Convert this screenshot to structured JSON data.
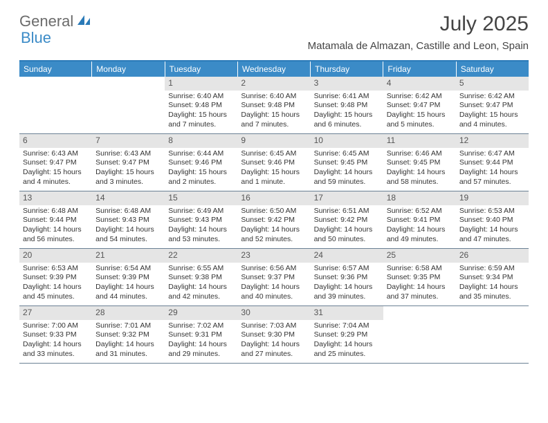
{
  "brand": {
    "part1": "General",
    "part2": "Blue"
  },
  "title": "July 2025",
  "location": "Matamala de Almazan, Castille and Leon, Spain",
  "colors": {
    "header_bg": "#3b8bc7",
    "header_border_top": "#2a7ab8",
    "daynum_bg": "#e5e5e5",
    "row_border": "#6a8094",
    "text": "#333333",
    "logo_gray": "#6b6b6b",
    "logo_blue": "#3b8bc7"
  },
  "typography": {
    "title_fontsize": 30,
    "location_fontsize": 15,
    "weekday_fontsize": 12,
    "daynum_fontsize": 12,
    "body_fontsize": 10.5
  },
  "weekdays": [
    "Sunday",
    "Monday",
    "Tuesday",
    "Wednesday",
    "Thursday",
    "Friday",
    "Saturday"
  ],
  "weeks": [
    [
      {
        "n": "",
        "sr": "",
        "ss": "",
        "dl": ""
      },
      {
        "n": "",
        "sr": "",
        "ss": "",
        "dl": ""
      },
      {
        "n": "1",
        "sr": "Sunrise: 6:40 AM",
        "ss": "Sunset: 9:48 PM",
        "dl": "Daylight: 15 hours and 7 minutes."
      },
      {
        "n": "2",
        "sr": "Sunrise: 6:40 AM",
        "ss": "Sunset: 9:48 PM",
        "dl": "Daylight: 15 hours and 7 minutes."
      },
      {
        "n": "3",
        "sr": "Sunrise: 6:41 AM",
        "ss": "Sunset: 9:48 PM",
        "dl": "Daylight: 15 hours and 6 minutes."
      },
      {
        "n": "4",
        "sr": "Sunrise: 6:42 AM",
        "ss": "Sunset: 9:47 PM",
        "dl": "Daylight: 15 hours and 5 minutes."
      },
      {
        "n": "5",
        "sr": "Sunrise: 6:42 AM",
        "ss": "Sunset: 9:47 PM",
        "dl": "Daylight: 15 hours and 4 minutes."
      }
    ],
    [
      {
        "n": "6",
        "sr": "Sunrise: 6:43 AM",
        "ss": "Sunset: 9:47 PM",
        "dl": "Daylight: 15 hours and 4 minutes."
      },
      {
        "n": "7",
        "sr": "Sunrise: 6:43 AM",
        "ss": "Sunset: 9:47 PM",
        "dl": "Daylight: 15 hours and 3 minutes."
      },
      {
        "n": "8",
        "sr": "Sunrise: 6:44 AM",
        "ss": "Sunset: 9:46 PM",
        "dl": "Daylight: 15 hours and 2 minutes."
      },
      {
        "n": "9",
        "sr": "Sunrise: 6:45 AM",
        "ss": "Sunset: 9:46 PM",
        "dl": "Daylight: 15 hours and 1 minute."
      },
      {
        "n": "10",
        "sr": "Sunrise: 6:45 AM",
        "ss": "Sunset: 9:45 PM",
        "dl": "Daylight: 14 hours and 59 minutes."
      },
      {
        "n": "11",
        "sr": "Sunrise: 6:46 AM",
        "ss": "Sunset: 9:45 PM",
        "dl": "Daylight: 14 hours and 58 minutes."
      },
      {
        "n": "12",
        "sr": "Sunrise: 6:47 AM",
        "ss": "Sunset: 9:44 PM",
        "dl": "Daylight: 14 hours and 57 minutes."
      }
    ],
    [
      {
        "n": "13",
        "sr": "Sunrise: 6:48 AM",
        "ss": "Sunset: 9:44 PM",
        "dl": "Daylight: 14 hours and 56 minutes."
      },
      {
        "n": "14",
        "sr": "Sunrise: 6:48 AM",
        "ss": "Sunset: 9:43 PM",
        "dl": "Daylight: 14 hours and 54 minutes."
      },
      {
        "n": "15",
        "sr": "Sunrise: 6:49 AM",
        "ss": "Sunset: 9:43 PM",
        "dl": "Daylight: 14 hours and 53 minutes."
      },
      {
        "n": "16",
        "sr": "Sunrise: 6:50 AM",
        "ss": "Sunset: 9:42 PM",
        "dl": "Daylight: 14 hours and 52 minutes."
      },
      {
        "n": "17",
        "sr": "Sunrise: 6:51 AM",
        "ss": "Sunset: 9:42 PM",
        "dl": "Daylight: 14 hours and 50 minutes."
      },
      {
        "n": "18",
        "sr": "Sunrise: 6:52 AM",
        "ss": "Sunset: 9:41 PM",
        "dl": "Daylight: 14 hours and 49 minutes."
      },
      {
        "n": "19",
        "sr": "Sunrise: 6:53 AM",
        "ss": "Sunset: 9:40 PM",
        "dl": "Daylight: 14 hours and 47 minutes."
      }
    ],
    [
      {
        "n": "20",
        "sr": "Sunrise: 6:53 AM",
        "ss": "Sunset: 9:39 PM",
        "dl": "Daylight: 14 hours and 45 minutes."
      },
      {
        "n": "21",
        "sr": "Sunrise: 6:54 AM",
        "ss": "Sunset: 9:39 PM",
        "dl": "Daylight: 14 hours and 44 minutes."
      },
      {
        "n": "22",
        "sr": "Sunrise: 6:55 AM",
        "ss": "Sunset: 9:38 PM",
        "dl": "Daylight: 14 hours and 42 minutes."
      },
      {
        "n": "23",
        "sr": "Sunrise: 6:56 AM",
        "ss": "Sunset: 9:37 PM",
        "dl": "Daylight: 14 hours and 40 minutes."
      },
      {
        "n": "24",
        "sr": "Sunrise: 6:57 AM",
        "ss": "Sunset: 9:36 PM",
        "dl": "Daylight: 14 hours and 39 minutes."
      },
      {
        "n": "25",
        "sr": "Sunrise: 6:58 AM",
        "ss": "Sunset: 9:35 PM",
        "dl": "Daylight: 14 hours and 37 minutes."
      },
      {
        "n": "26",
        "sr": "Sunrise: 6:59 AM",
        "ss": "Sunset: 9:34 PM",
        "dl": "Daylight: 14 hours and 35 minutes."
      }
    ],
    [
      {
        "n": "27",
        "sr": "Sunrise: 7:00 AM",
        "ss": "Sunset: 9:33 PM",
        "dl": "Daylight: 14 hours and 33 minutes."
      },
      {
        "n": "28",
        "sr": "Sunrise: 7:01 AM",
        "ss": "Sunset: 9:32 PM",
        "dl": "Daylight: 14 hours and 31 minutes."
      },
      {
        "n": "29",
        "sr": "Sunrise: 7:02 AM",
        "ss": "Sunset: 9:31 PM",
        "dl": "Daylight: 14 hours and 29 minutes."
      },
      {
        "n": "30",
        "sr": "Sunrise: 7:03 AM",
        "ss": "Sunset: 9:30 PM",
        "dl": "Daylight: 14 hours and 27 minutes."
      },
      {
        "n": "31",
        "sr": "Sunrise: 7:04 AM",
        "ss": "Sunset: 9:29 PM",
        "dl": "Daylight: 14 hours and 25 minutes."
      },
      {
        "n": "",
        "sr": "",
        "ss": "",
        "dl": ""
      },
      {
        "n": "",
        "sr": "",
        "ss": "",
        "dl": ""
      }
    ]
  ]
}
